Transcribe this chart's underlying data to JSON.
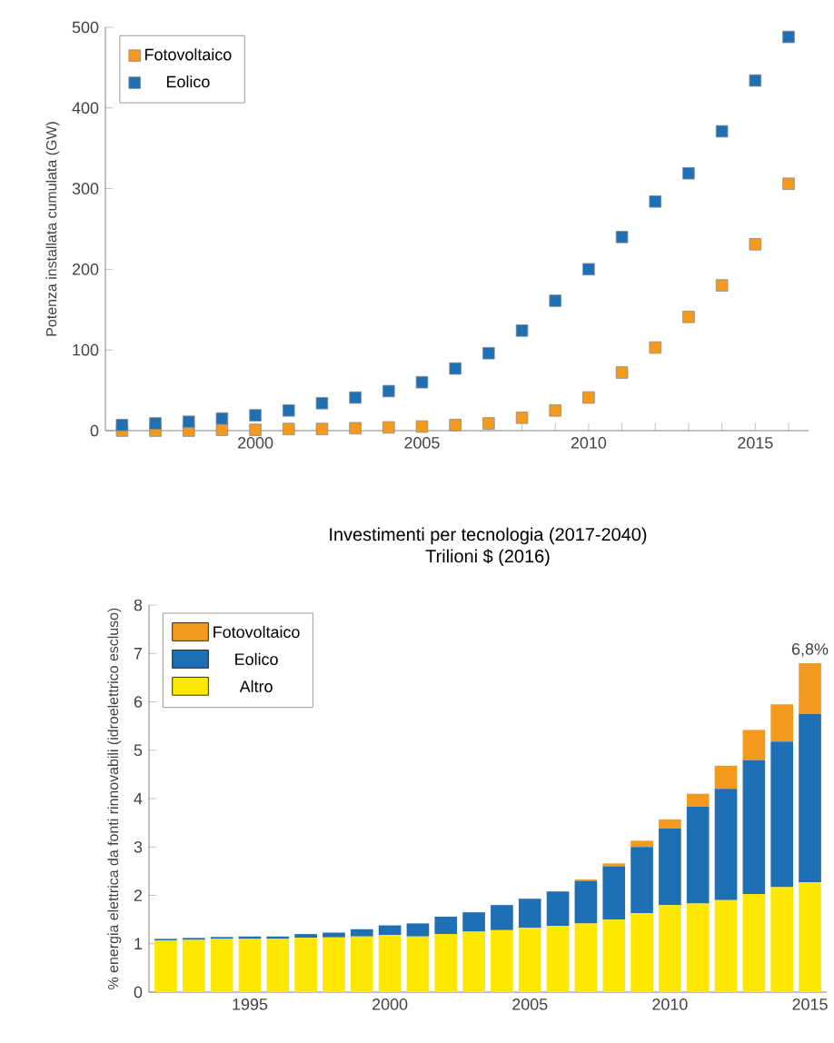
{
  "chart_data": [
    {
      "type": "scatter",
      "ylabel": "Potenza installata cumulata (GW)",
      "marker": "square",
      "legend": "top left",
      "grid": false,
      "x": [
        1996,
        1997,
        1998,
        1999,
        2000,
        2001,
        2002,
        2003,
        2004,
        2005,
        2006,
        2007,
        2008,
        2009,
        2010,
        2011,
        2012,
        2013,
        2014,
        2015,
        2016
      ],
      "xlim": [
        1995.5,
        2016.6
      ],
      "xticks": [
        {
          "value": 1996,
          "label": null
        },
        {
          "value": 1997,
          "label": null
        },
        {
          "value": 1998,
          "label": null
        },
        {
          "value": 1999,
          "label": null
        },
        2000,
        {
          "value": 2001,
          "label": null
        },
        {
          "value": 2002,
          "label": null
        },
        {
          "value": 2003,
          "label": null
        },
        {
          "value": 2004,
          "label": null
        },
        2005,
        {
          "value": 2006,
          "label": null
        },
        {
          "value": 2007,
          "label": null
        },
        {
          "value": 2008,
          "label": null
        },
        {
          "value": 2009,
          "label": null
        },
        2010,
        {
          "value": 2011,
          "label": null
        },
        {
          "value": 2012,
          "label": null
        },
        {
          "value": 2013,
          "label": null
        },
        {
          "value": 2014,
          "label": null
        },
        2015,
        {
          "value": 2016,
          "label": null
        }
      ],
      "ylim": [
        0,
        500
      ],
      "yticks": [
        0,
        100,
        200,
        300,
        400,
        500
      ],
      "series": [
        {
          "name": "Fotovoltaico",
          "color": "#f39a1e",
          "values": [
            0,
            0,
            0,
            1,
            1,
            2,
            2,
            3,
            4,
            5,
            7,
            9,
            16,
            25,
            41,
            72,
            103,
            141,
            180,
            231,
            306
          ]
        },
        {
          "name": "Eolico",
          "color": "#1f6fb5",
          "values": [
            7,
            9,
            11,
            15,
            19,
            25,
            34,
            41,
            49,
            60,
            77,
            96,
            124,
            161,
            200,
            240,
            284,
            319,
            371,
            434,
            488
          ]
        }
      ]
    },
    {
      "type": "bar",
      "stacked": true,
      "title": "Investimenti per tecnologia (2017-2040)",
      "subtitle": "Trilioni $ (2016)",
      "ylabel": "% energia elettrica da fonti rinnovabili (idroelettrico escluso)",
      "legend": "top left",
      "grid": false,
      "categories": [
        null,
        null,
        null,
        "1995",
        null,
        null,
        null,
        null,
        "2000",
        null,
        null,
        null,
        null,
        "2005",
        null,
        null,
        null,
        null,
        "2010",
        null,
        null,
        null,
        null,
        "2015"
      ],
      "ylim": [
        0,
        8
      ],
      "yticks": [
        0,
        1,
        2,
        3,
        4,
        5,
        6,
        7,
        8
      ],
      "series": [
        {
          "name": "Altro",
          "color": "#ffe800",
          "values": [
            1.07,
            1.08,
            1.1,
            1.1,
            1.1,
            1.12,
            1.13,
            1.15,
            1.18,
            1.15,
            1.2,
            1.25,
            1.28,
            1.33,
            1.37,
            1.42,
            1.5,
            1.63,
            1.8,
            1.83,
            1.9,
            2.03,
            2.17,
            2.27
          ]
        },
        {
          "name": "Eolico",
          "color": "#1f6fb5",
          "values": [
            0.03,
            0.04,
            0.04,
            0.05,
            0.05,
            0.08,
            0.1,
            0.15,
            0.2,
            0.27,
            0.36,
            0.4,
            0.52,
            0.6,
            0.71,
            0.88,
            1.1,
            1.37,
            1.58,
            2.0,
            2.3,
            2.77,
            3.01,
            3.48
          ]
        },
        {
          "name": "Fotovoltaico",
          "color": "#f39a1e",
          "values": [
            0,
            0,
            0,
            0,
            0,
            0,
            0,
            0,
            0,
            0,
            0,
            0,
            0,
            0,
            0,
            0.03,
            0.06,
            0.13,
            0.19,
            0.27,
            0.48,
            0.62,
            0.77,
            1.05
          ]
        }
      ],
      "annotations": [
        {
          "text": "6,8%",
          "x": "2015",
          "y": 6.8
        }
      ]
    }
  ]
}
